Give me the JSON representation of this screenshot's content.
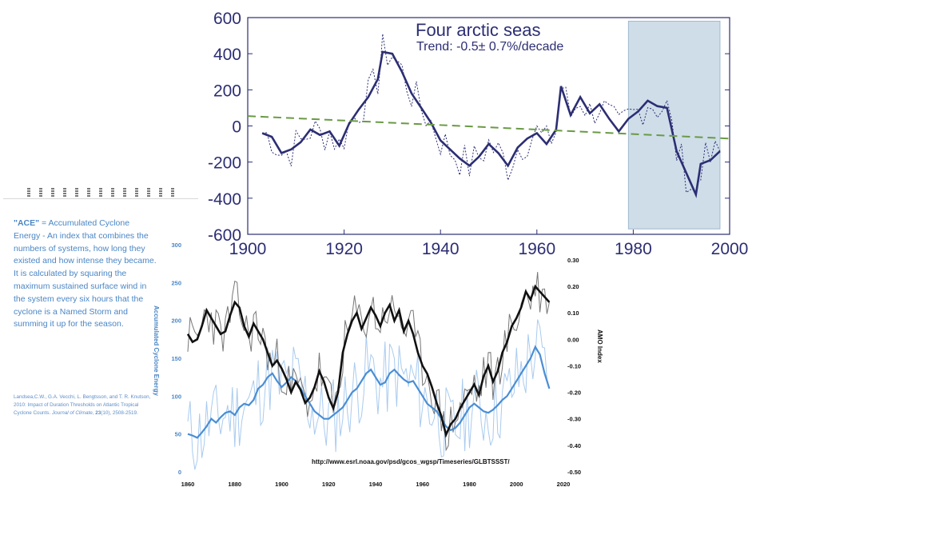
{
  "top_chart": {
    "title": "Four arctic seas",
    "subtitle": "Trend: -0.5± 0.7%/decade",
    "x_ticks": [
      "1900",
      "1920",
      "1940",
      "1960",
      "1980",
      "2000"
    ],
    "y_ticks": [
      "600",
      "400",
      "200",
      "0",
      "-200",
      "-400",
      "-600"
    ],
    "colors": {
      "line": "#2c2e73",
      "trend": "#6a9a45",
      "shade": "#cfdde9"
    }
  },
  "bottom_chart": {
    "x_ticks": [
      "1860",
      "1880",
      "1900",
      "1920",
      "1940",
      "1960",
      "1980",
      "2000",
      "2020"
    ],
    "y_left_ticks": [
      "300",
      "250",
      "200",
      "150",
      "100",
      "50",
      "0"
    ],
    "y_right_ticks": [
      "0.30",
      "0.20",
      "0.10",
      "0.00",
      "-0.10",
      "-0.20",
      "-0.30",
      "-0.40",
      "-0.50"
    ],
    "y_left_label": "Accumulated Cyclone Energy",
    "y_right_label": "AMO Index",
    "url": "http://www.esrl.noaa.gov/psd/gcos_wgsp/Timeseries/GLBTSSST/",
    "colors": {
      "ace": "#4a8ed4",
      "ace_light": "#a9cbef",
      "amo": "#111111",
      "amo_light": "#777777"
    }
  },
  "chart_data": [
    {
      "type": "line",
      "title": "Four arctic seas",
      "subtitle": "Trend: -0.5± 0.7%/decade",
      "xlim": [
        1900,
        2000
      ],
      "ylim": [
        -600,
        600
      ],
      "shaded_region": [
        1979,
        1998
      ],
      "series": [
        {
          "x": [
            1903,
            1905,
            1907,
            1909,
            1911,
            1913,
            1915,
            1917,
            1919,
            1921,
            1923,
            1925,
            1927,
            1928,
            1930,
            1932,
            1934,
            1936,
            1938,
            1940,
            1942,
            1944,
            1946,
            1948,
            1950,
            1952,
            1954,
            1956,
            1958,
            1960,
            1962,
            1964,
            1965,
            1967,
            1969,
            1971,
            1973,
            1975,
            1977,
            1979,
            1981,
            1983,
            1985,
            1987,
            1989,
            1991,
            1993,
            1994,
            1996,
            1998
          ],
          "values": [
            -40,
            -60,
            -150,
            -130,
            -90,
            -20,
            -50,
            -30,
            -110,
            10,
            90,
            160,
            260,
            410,
            400,
            300,
            180,
            100,
            20,
            -80,
            -130,
            -180,
            -220,
            -170,
            -100,
            -150,
            -220,
            -120,
            -70,
            -40,
            -100,
            -20,
            220,
            60,
            160,
            70,
            120,
            40,
            -30,
            40,
            80,
            140,
            110,
            100,
            -140,
            -260,
            -380,
            -210,
            -190,
            -140
          ]
        },
        {
          "x": [
            1900,
            2000
          ],
          "values": [
            55,
            -70
          ]
        }
      ]
    },
    {
      "type": "line",
      "xlim": [
        1860,
        2020
      ],
      "ylim": [
        0,
        300
      ],
      "y2lim": [
        -0.5,
        0.3
      ],
      "series": [
        {
          "x": [
            1860,
            1862,
            1864,
            1866,
            1868,
            1870,
            1872,
            1874,
            1876,
            1878,
            1880,
            1882,
            1884,
            1886,
            1888,
            1890,
            1892,
            1894,
            1896,
            1898,
            1900,
            1902,
            1904,
            1906,
            1908,
            1910,
            1912,
            1914,
            1916,
            1918,
            1920,
            1922,
            1924,
            1926,
            1928,
            1930,
            1932,
            1934,
            1936,
            1938,
            1940,
            1942,
            1944,
            1946,
            1948,
            1950,
            1952,
            1954,
            1956,
            1958,
            1960,
            1962,
            1964,
            1966,
            1968,
            1970,
            1972,
            1974,
            1976,
            1978,
            1980,
            1982,
            1984,
            1986,
            1988,
            1990,
            1992,
            1994,
            1996,
            1998,
            2000,
            2002,
            2004,
            2006,
            2008,
            2010,
            2012,
            2014
          ],
          "values": [
            50,
            48,
            45,
            52,
            60,
            70,
            65,
            72,
            78,
            80,
            75,
            85,
            90,
            88,
            95,
            110,
            115,
            125,
            130,
            120,
            112,
            118,
            125,
            120,
            110,
            100,
            90,
            80,
            75,
            70,
            70,
            75,
            80,
            85,
            95,
            105,
            110,
            120,
            130,
            135,
            125,
            115,
            118,
            130,
            135,
            128,
            122,
            118,
            120,
            110,
            100,
            90,
            85,
            80,
            70,
            60,
            55,
            58,
            65,
            75,
            85,
            90,
            85,
            80,
            78,
            82,
            88,
            95,
            100,
            110,
            120,
            130,
            140,
            150,
            165,
            155,
            130,
            110
          ]
        },
        {
          "x": [
            1860,
            1862,
            1864,
            1866,
            1868,
            1870,
            1872,
            1874,
            1876,
            1878,
            1880,
            1882,
            1884,
            1886,
            1888,
            1890,
            1892,
            1894,
            1896,
            1898,
            1900,
            1902,
            1904,
            1906,
            1908,
            1910,
            1912,
            1914,
            1916,
            1918,
            1920,
            1922,
            1924,
            1926,
            1928,
            1930,
            1932,
            1934,
            1936,
            1938,
            1940,
            1942,
            1944,
            1946,
            1948,
            1950,
            1952,
            1954,
            1956,
            1958,
            1960,
            1962,
            1964,
            1966,
            1968,
            1970,
            1972,
            1974,
            1976,
            1978,
            1980,
            1982,
            1984,
            1986,
            1988,
            1990,
            1992,
            1994,
            1996,
            1998,
            2000,
            2002,
            2004,
            2006,
            2008,
            2010,
            2012,
            2014
          ],
          "values": [
            0.02,
            -0.01,
            0.0,
            0.05,
            0.11,
            0.08,
            0.05,
            0.02,
            0.03,
            0.09,
            0.14,
            0.12,
            0.05,
            0.01,
            0.06,
            0.03,
            0.0,
            -0.05,
            -0.1,
            -0.08,
            -0.11,
            -0.15,
            -0.2,
            -0.16,
            -0.19,
            -0.24,
            -0.22,
            -0.18,
            -0.12,
            -0.16,
            -0.22,
            -0.26,
            -0.2,
            -0.05,
            0.02,
            0.07,
            0.1,
            0.04,
            0.08,
            0.12,
            0.09,
            0.05,
            0.1,
            0.13,
            0.07,
            0.11,
            0.03,
            0.07,
            0.02,
            -0.05,
            -0.1,
            -0.13,
            -0.18,
            -0.24,
            -0.29,
            -0.36,
            -0.32,
            -0.3,
            -0.26,
            -0.23,
            -0.2,
            -0.17,
            -0.21,
            -0.14,
            -0.1,
            -0.16,
            -0.12,
            -0.05,
            -0.01,
            0.05,
            0.08,
            0.12,
            0.18,
            0.15,
            0.2,
            0.18,
            0.16,
            0.14
          ]
        }
      ]
    }
  ]
}
